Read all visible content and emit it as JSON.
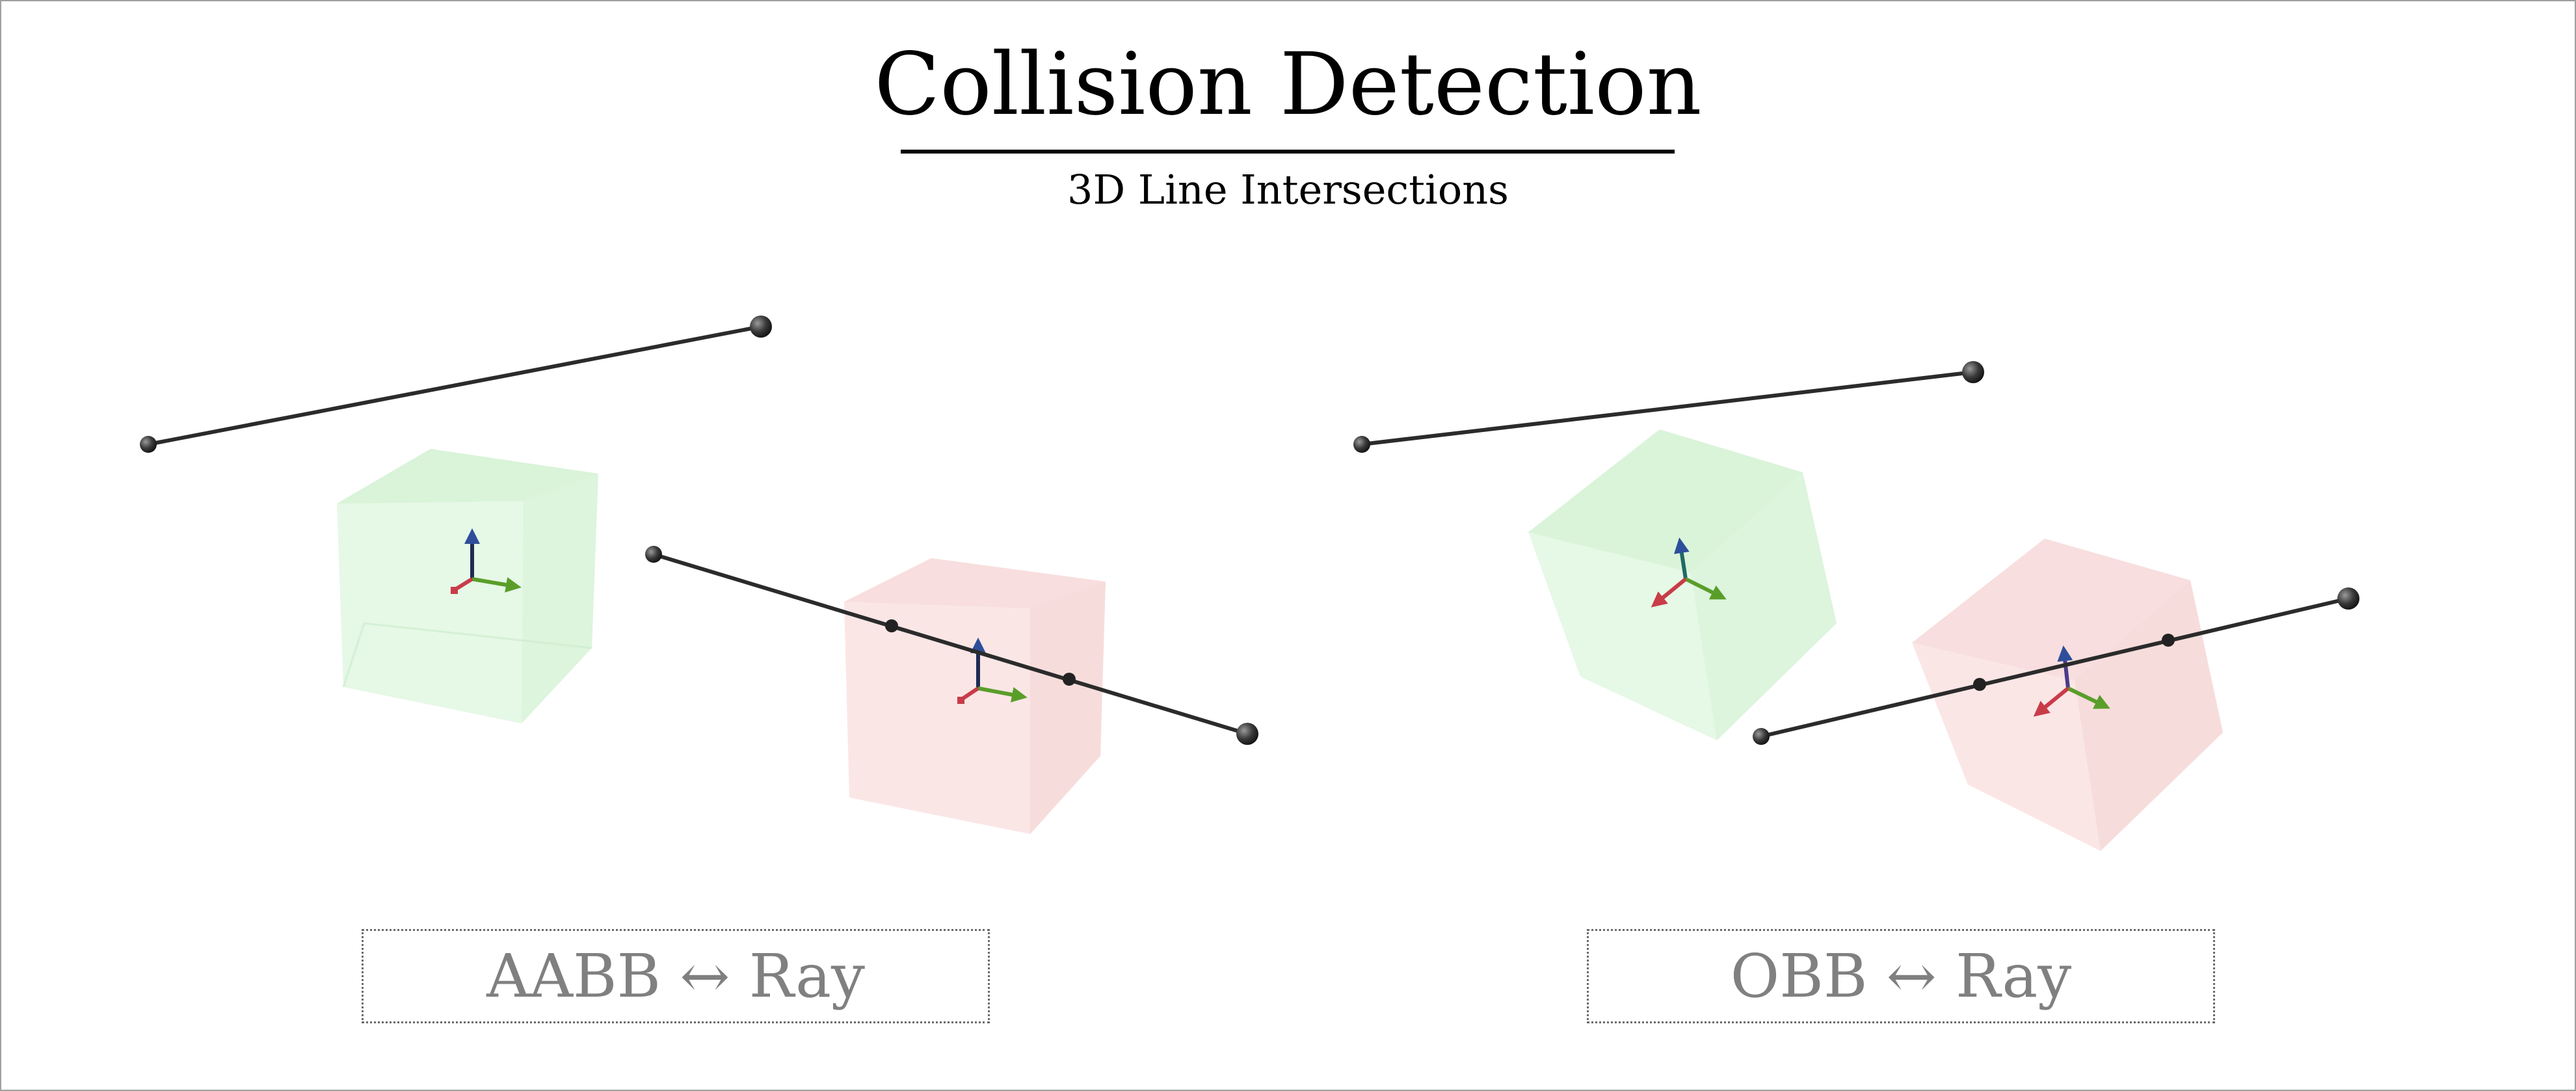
{
  "title": "Collision Detection",
  "subtitle": "3D Line Intersections",
  "panels": [
    {
      "label": "AABB ↔ Ray"
    },
    {
      "label": "OBB ↔ Ray"
    }
  ],
  "colors": {
    "green_box": "#d7f5d7",
    "red_box": "#f7d7d7",
    "axis_x": "#c83c48",
    "axis_y": "#5a9e2a",
    "axis_z": "#2e4e9a",
    "segment": "#2b2b2b",
    "label_text": "#808080"
  }
}
